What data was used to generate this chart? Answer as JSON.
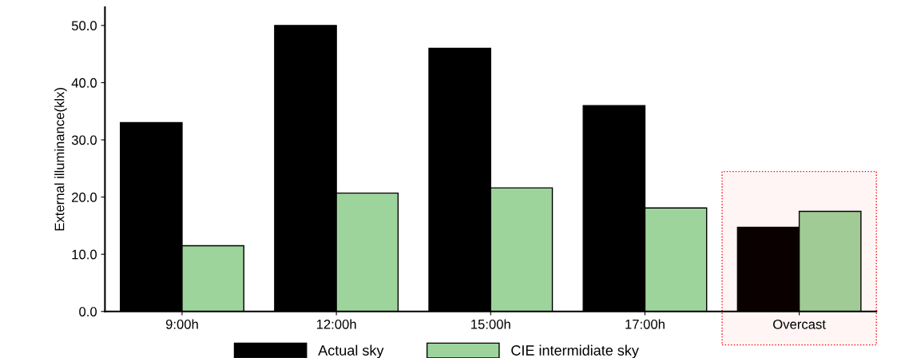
{
  "chart_data": {
    "type": "bar",
    "ylabel": "External illuminance(klx)",
    "categories": [
      "9:00h",
      "12:00h",
      "15:00h",
      "17:00h",
      "Overcast"
    ],
    "series": [
      {
        "name": "Actual sky",
        "color": "#000000",
        "values": [
          33.0,
          50.0,
          46.0,
          36.0,
          14.7
        ]
      },
      {
        "name": "CIE intermidiate sky",
        "color": "#9dd49b",
        "values": [
          11.5,
          20.7,
          21.6,
          18.1,
          17.5
        ]
      }
    ],
    "ylim": [
      0,
      53.2
    ],
    "yticks": [
      {
        "value": 0,
        "label": "0.0"
      },
      {
        "value": 10,
        "label": "10.0"
      },
      {
        "value": 20,
        "label": "20.0"
      },
      {
        "value": 30,
        "label": "30.0"
      },
      {
        "value": 40,
        "label": "40.0"
      },
      {
        "value": 50,
        "label": "50.0"
      }
    ],
    "bands": [
      {
        "axis": "x",
        "from": "Overcast",
        "to": "Overcast",
        "color": "#ff0000"
      }
    ],
    "legend": "bottom",
    "grid": false
  }
}
